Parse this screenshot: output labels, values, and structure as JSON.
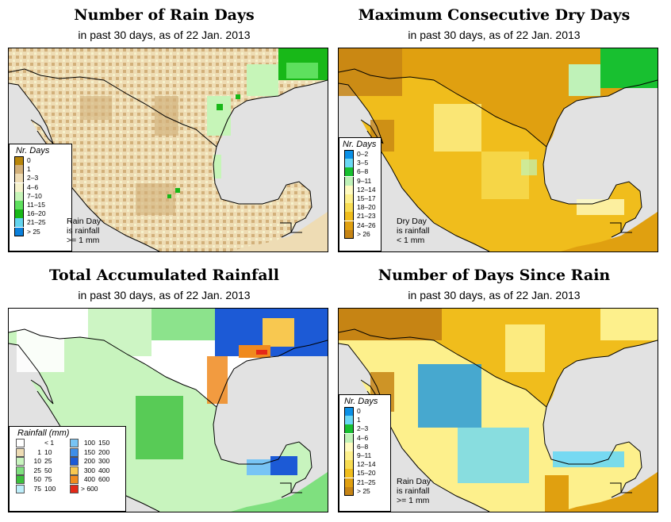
{
  "panels": {
    "rain_days": {
      "title": "Number of Rain Days",
      "subtitle": "in past 30 days, as of  22 Jan. 2013",
      "legend_title": "Nr. Days",
      "legend": [
        {
          "label": "0",
          "color": "#b8860b"
        },
        {
          "label": "1",
          "color": "#d2b07a"
        },
        {
          "label": "2–3",
          "color": "#eedcb4"
        },
        {
          "label": "4–6",
          "color": "#f6f2cc"
        },
        {
          "label": "7–10",
          "color": "#c6f5b8"
        },
        {
          "label": "11–15",
          "color": "#5ee05e"
        },
        {
          "label": "16–20",
          "color": "#18b818"
        },
        {
          "label": "21–25",
          "color": "#62d4ee"
        },
        {
          "label": "> 25",
          "color": "#0a80dc"
        }
      ],
      "note": [
        "Rain Day",
        "is rainfall",
        ">= 1 mm"
      ]
    },
    "dry_days": {
      "title": "Maximum Consecutive Dry Days",
      "subtitle": "in past 30 days, as of  22 Jan. 2013",
      "legend_title": "Nr. Days",
      "legend": [
        {
          "label": "0–2",
          "color": "#0a90e6"
        },
        {
          "label": "3–5",
          "color": "#6ad8f4"
        },
        {
          "label": "6–8",
          "color": "#18c030"
        },
        {
          "label": "9–11",
          "color": "#bff2b8"
        },
        {
          "label": "12–14",
          "color": "#fffbc0"
        },
        {
          "label": "15–17",
          "color": "#fdf08c"
        },
        {
          "label": "18–20",
          "color": "#f8dc52"
        },
        {
          "label": "21–23",
          "color": "#f0bd1c"
        },
        {
          "label": "24–26",
          "color": "#e0a010"
        },
        {
          "label": "> 26",
          "color": "#c68414"
        }
      ],
      "note": [
        "Dry Day",
        "is rainfall",
        "< 1 mm"
      ]
    },
    "rainfall": {
      "title": "Total Accumulated Rainfall",
      "subtitle": "in past 30 days, as of  22 Jan. 2013",
      "legend_title": "Rainfall (mm)",
      "legend_left": [
        {
          "a": "",
          "b": "< 1",
          "color": "#ffffff"
        },
        {
          "a": "1",
          "b": "10",
          "color": "#eedcb4"
        },
        {
          "a": "10",
          "b": "25",
          "color": "#c8f4be"
        },
        {
          "a": "25",
          "b": "50",
          "color": "#7fe07f"
        },
        {
          "a": "50",
          "b": "75",
          "color": "#3cc03c"
        },
        {
          "a": "75",
          "b": "100",
          "color": "#bdeefa"
        }
      ],
      "legend_right": [
        {
          "a": "100",
          "b": "150",
          "color": "#78c4f4"
        },
        {
          "a": "150",
          "b": "200",
          "color": "#3e8ee8"
        },
        {
          "a": "200",
          "b": "300",
          "color": "#1c5ad6"
        },
        {
          "a": "300",
          "b": "400",
          "color": "#f8c850"
        },
        {
          "a": "400",
          "b": "600",
          "color": "#f08a1e"
        },
        {
          "a": "> 600",
          "b": "",
          "color": "#e42818"
        }
      ]
    },
    "since_rain": {
      "title": "Number of Days Since Rain",
      "subtitle": "in past 30 days, as of  22 Jan. 2013",
      "legend_title": "Nr. Days",
      "legend": [
        {
          "label": "0",
          "color": "#0a90e6"
        },
        {
          "label": "1",
          "color": "#6ad8f4"
        },
        {
          "label": "2–3",
          "color": "#18c030"
        },
        {
          "label": "4–6",
          "color": "#bff2b8"
        },
        {
          "label": "6–8",
          "color": "#fffbc0"
        },
        {
          "label": "9–11",
          "color": "#fdf08c"
        },
        {
          "label": "12–14",
          "color": "#f8dc52"
        },
        {
          "label": "15–20",
          "color": "#f0bd1c"
        },
        {
          "label": "21–25",
          "color": "#e0a010"
        },
        {
          "label": "> 25",
          "color": "#c68414"
        }
      ],
      "note": [
        "Rain Day",
        "is rainfall",
        ">= 1 mm"
      ]
    }
  },
  "colors": {
    "water": "#e2e2e2",
    "rain_days_land": "#eedcb4",
    "dry_days_land": "#f0bd1c",
    "rainfall_land": "#c8f4be",
    "since_rain_land": "#fdf08c"
  }
}
